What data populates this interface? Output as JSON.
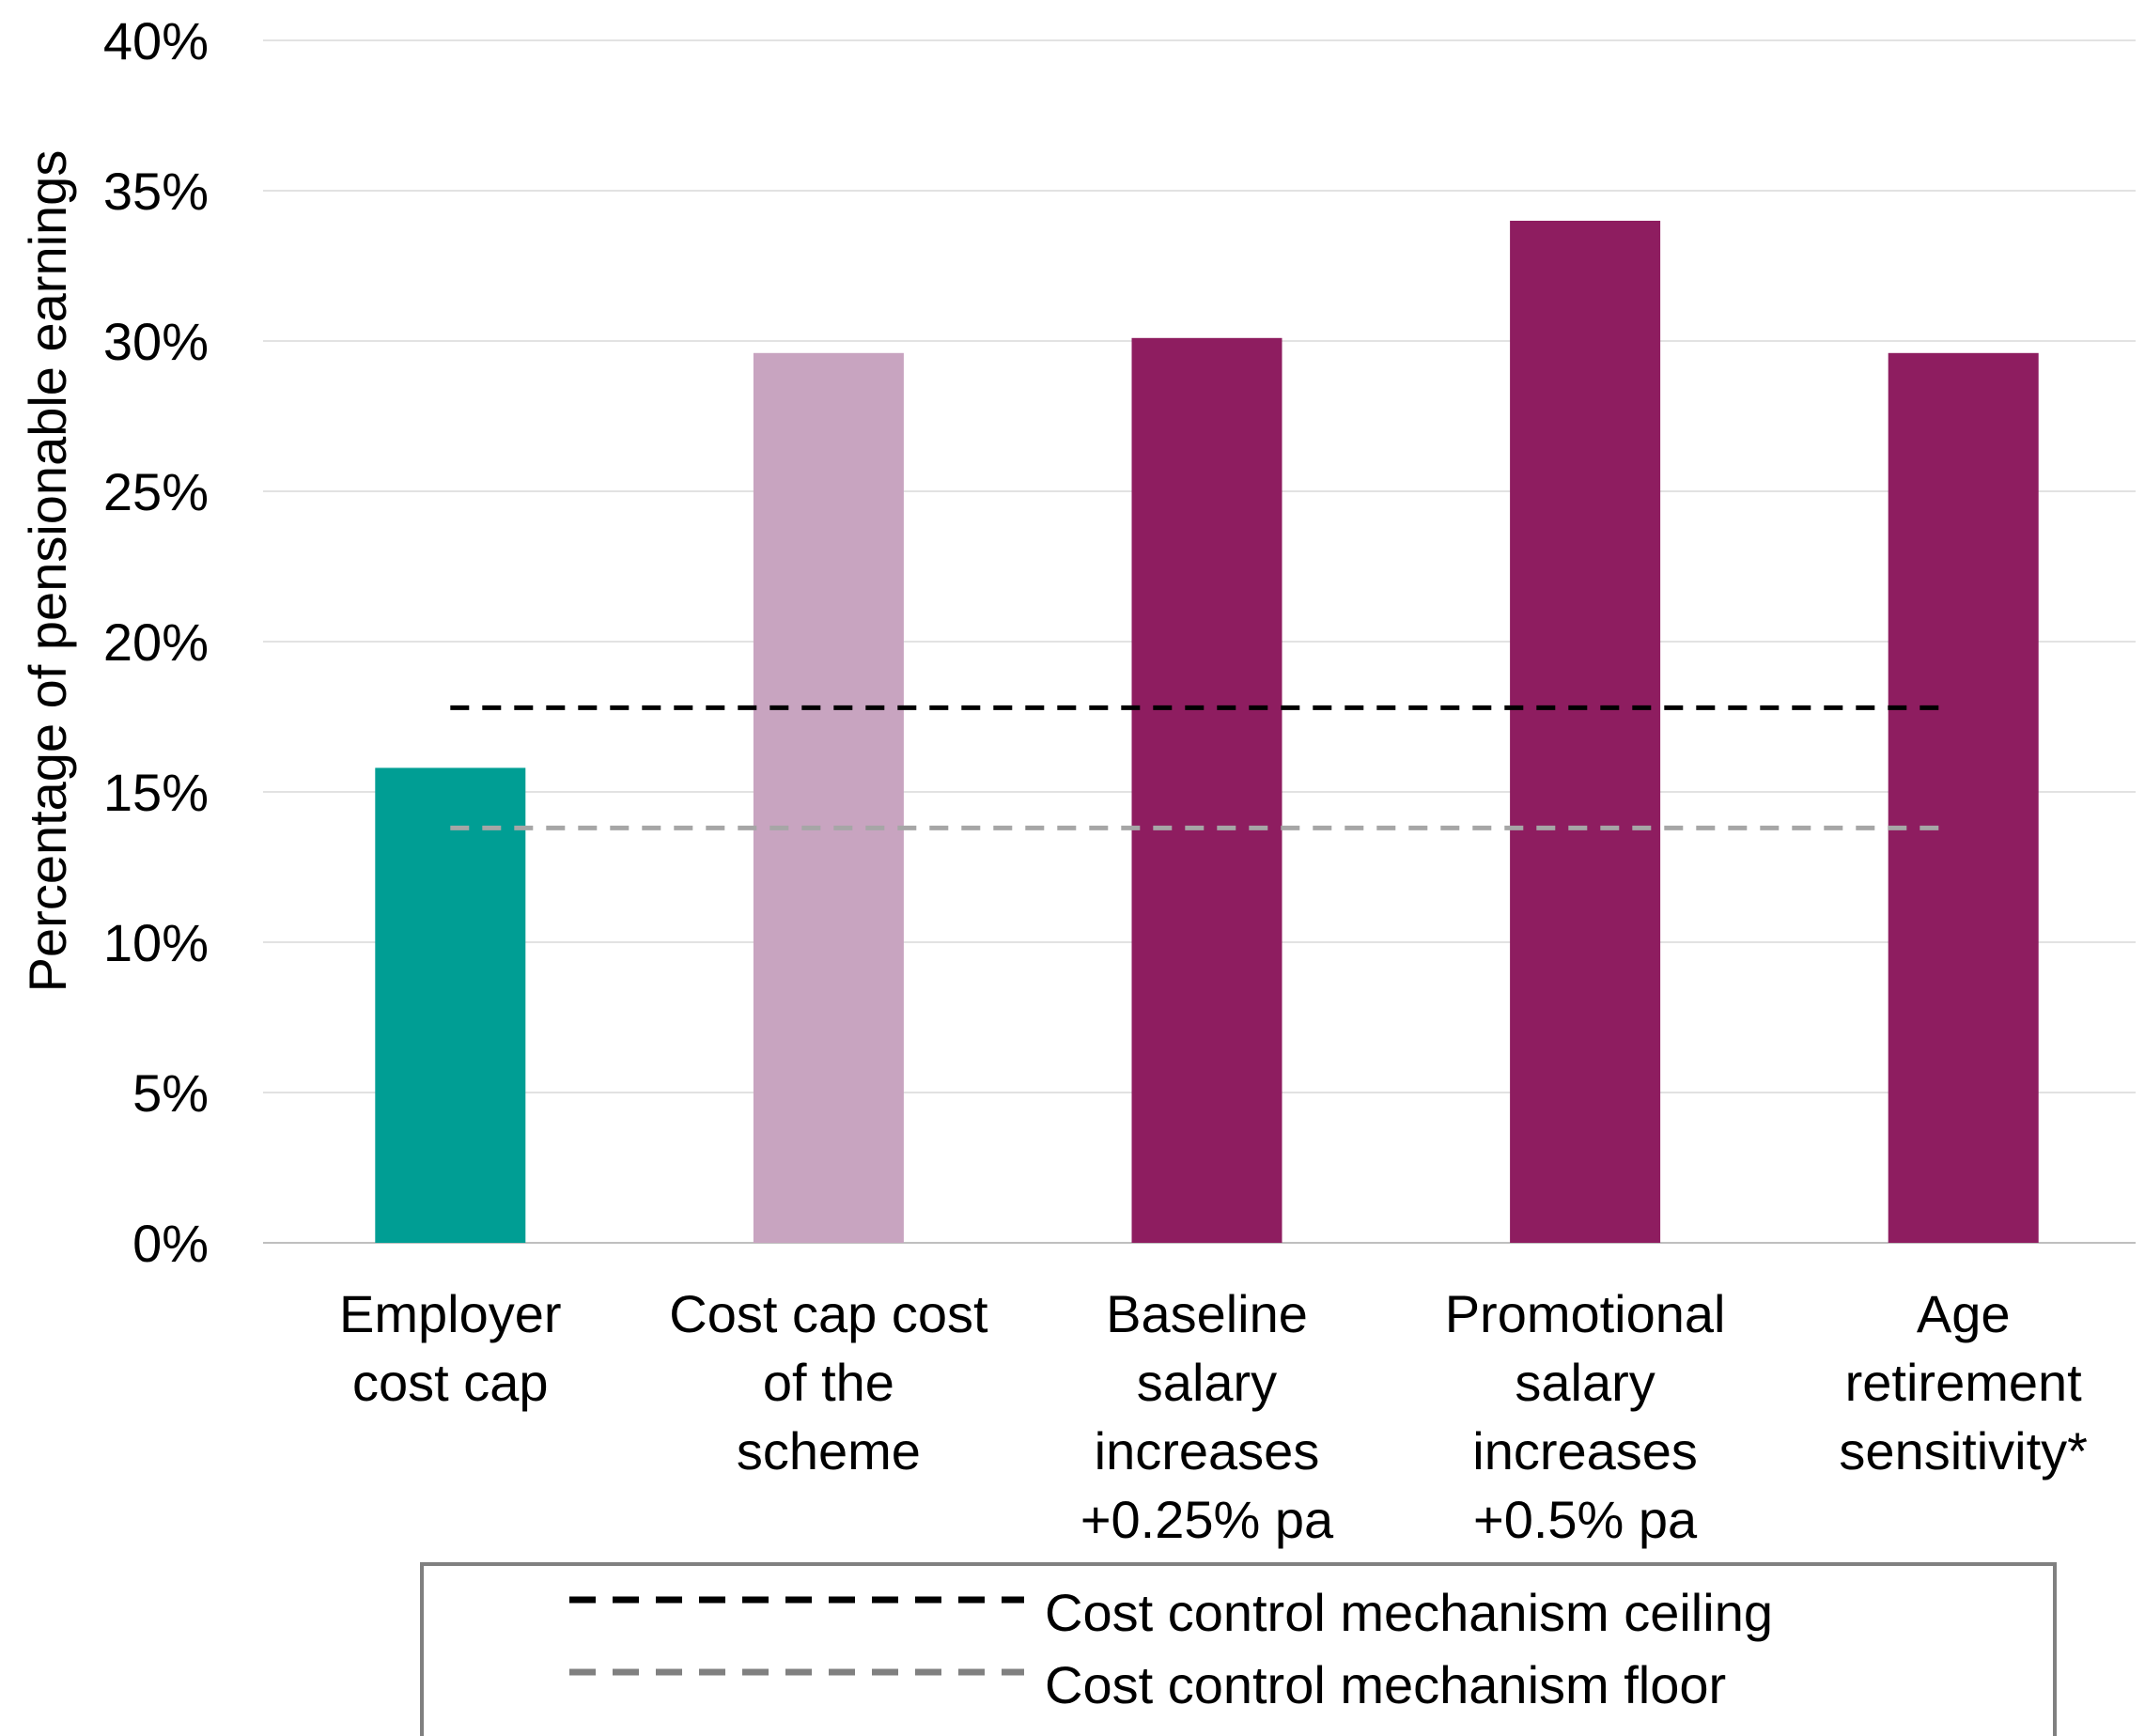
{
  "chart_data": {
    "type": "bar",
    "title": "",
    "xlabel": "",
    "ylabel": "Percentage of pensionable earnings",
    "ylim": [
      0,
      40
    ],
    "yticks": [
      "0%",
      "5%",
      "10%",
      "15%",
      "20%",
      "25%",
      "30%",
      "35%",
      "40%"
    ],
    "grid": true,
    "categories": [
      [
        "Employer",
        "cost cap"
      ],
      [
        "Cost cap cost",
        "of the",
        "scheme"
      ],
      [
        "Baseline",
        "salary",
        "increases",
        "+0.25% pa"
      ],
      [
        "Promotional",
        "salary",
        "increases",
        "+0.5% pa"
      ],
      [
        "Age",
        "retirement",
        "sensitivity*"
      ]
    ],
    "values": [
      15.8,
      29.6,
      30.1,
      34.0,
      29.6
    ],
    "bar_colors": [
      "#009e94",
      "#c8a4c0",
      "#8e1d60",
      "#8e1d60",
      "#8e1d60"
    ],
    "reference_lines": [
      {
        "name": "Cost control mechanism ceiling",
        "value": 17.8,
        "color": "#000000",
        "style": "dashed"
      },
      {
        "name": "Cost control mechanism floor",
        "value": 13.8,
        "color": "#a6a6a6",
        "style": "dashed"
      }
    ],
    "legend": {
      "position": "bottom",
      "entries": [
        {
          "label": "Cost control mechanism ceiling",
          "color": "#000000",
          "style": "dashed"
        },
        {
          "label": "Cost control mechanism floor",
          "color": "#808080",
          "style": "dashed"
        }
      ]
    }
  }
}
